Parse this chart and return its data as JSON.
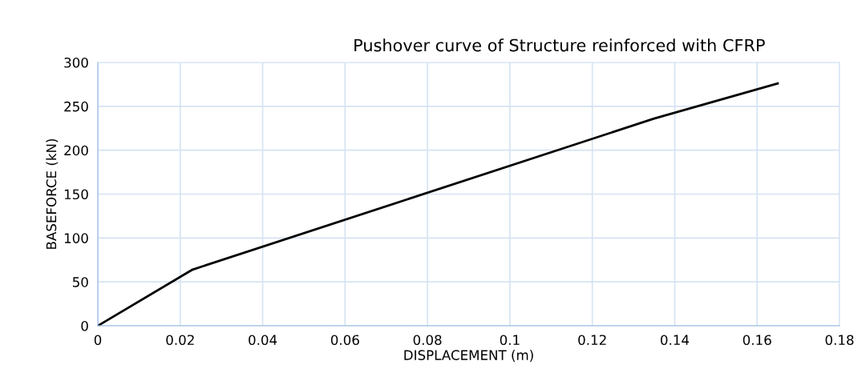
{
  "chart_data": {
    "type": "line",
    "title": "Pushover curve of Structure reinforced with CFRP",
    "xlabel": "DISPLACEMENT (m)",
    "ylabel": "BASEFORCE (kN)",
    "x": [
      0,
      0.023,
      0.135,
      0.165
    ],
    "series": [
      {
        "color": "#000000",
        "values": [
          0,
          64,
          236,
          276
        ]
      }
    ],
    "xlim": [
      0,
      0.18
    ],
    "xticks": [
      0,
      0.02,
      0.04,
      0.06,
      0.08,
      0.1,
      0.12,
      0.14,
      0.16,
      0.18
    ],
    "ylim": [
      0,
      300
    ],
    "yticks": [
      0,
      50,
      100,
      150,
      200,
      250,
      300
    ],
    "grid": true,
    "marker": "none",
    "line_style": "solid",
    "legend": false
  }
}
